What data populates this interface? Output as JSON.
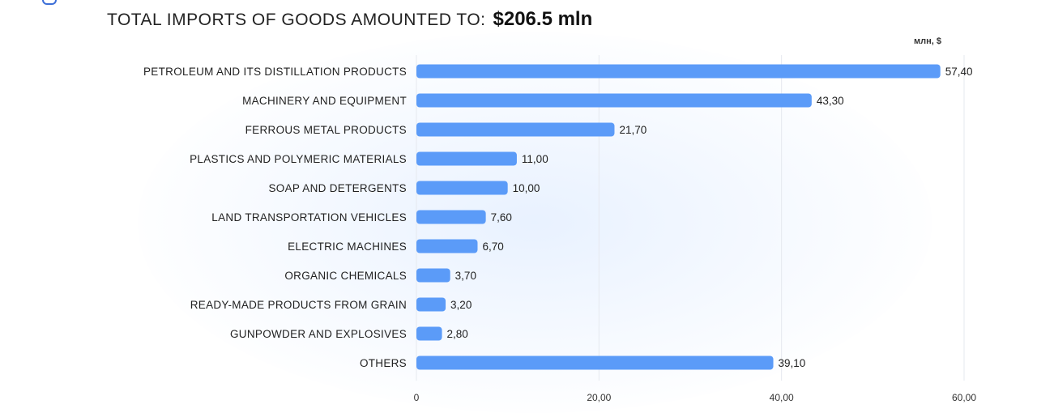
{
  "header": {
    "title": "TOTAL IMPORTS OF GOODS AMOUNTED TO:",
    "total": "$206.5 mln",
    "unit": "млн, $"
  },
  "colors": {
    "bar": "#5b9bf8",
    "grid": "#e6e9ef",
    "text": "#222222"
  },
  "chart_data": {
    "type": "bar",
    "orientation": "horizontal",
    "categories": [
      "PETROLEUM AND ITS DISTILLATION PRODUCTS",
      "MACHINERY AND EQUIPMENT",
      "FERROUS METAL PRODUCTS",
      "PLASTICS AND POLYMERIC MATERIALS",
      "SOAP AND DETERGENTS",
      "LAND TRANSPORTATION VEHICLES",
      "ELECTRIC MACHINES",
      "ORGANIC CHEMICALS",
      "READY-MADE PRODUCTS FROM GRAIN",
      "GUNPOWDER AND EXPLOSIVES",
      "OTHERS"
    ],
    "values": [
      57.4,
      43.3,
      21.7,
      11.0,
      10.0,
      7.6,
      6.7,
      3.7,
      3.2,
      2.8,
      39.1
    ],
    "value_labels": [
      "57,40",
      "43,30",
      "21,70",
      "11,00",
      "10,00",
      "7,60",
      "6,70",
      "3,70",
      "3,20",
      "2,80",
      "39,10"
    ],
    "xticks": [
      0,
      20,
      40,
      60
    ],
    "xtick_labels": [
      "0",
      "20,00",
      "40,00",
      "60,00"
    ],
    "xlim": [
      0,
      60
    ],
    "grid": true,
    "title": "TOTAL IMPORTS OF GOODS AMOUNTED TO: $206.5 mln",
    "xlabel": "млн, $",
    "ylabel": ""
  }
}
